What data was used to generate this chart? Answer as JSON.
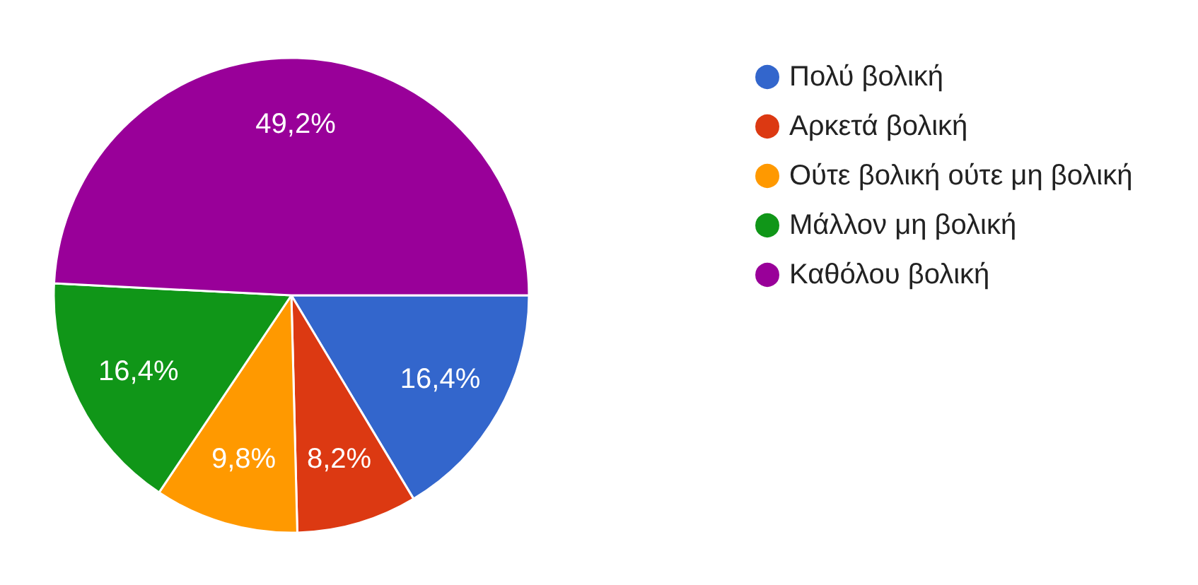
{
  "chart_data": {
    "type": "pie",
    "categories": [
      "Πολύ βολική",
      "Αρκετά βολική",
      "Ούτε βολική ούτε μη βολική",
      "Μάλλον μη βολική",
      "Καθόλου βολική"
    ],
    "values": [
      16.4,
      8.2,
      9.8,
      16.4,
      49.2
    ],
    "colors": [
      "#3366cc",
      "#dc3912",
      "#ff9900",
      "#109618",
      "#990099"
    ],
    "value_labels": [
      "16,4%",
      "8,2%",
      "9,8%",
      "16,4%",
      "49,2%"
    ],
    "legend": "right"
  }
}
